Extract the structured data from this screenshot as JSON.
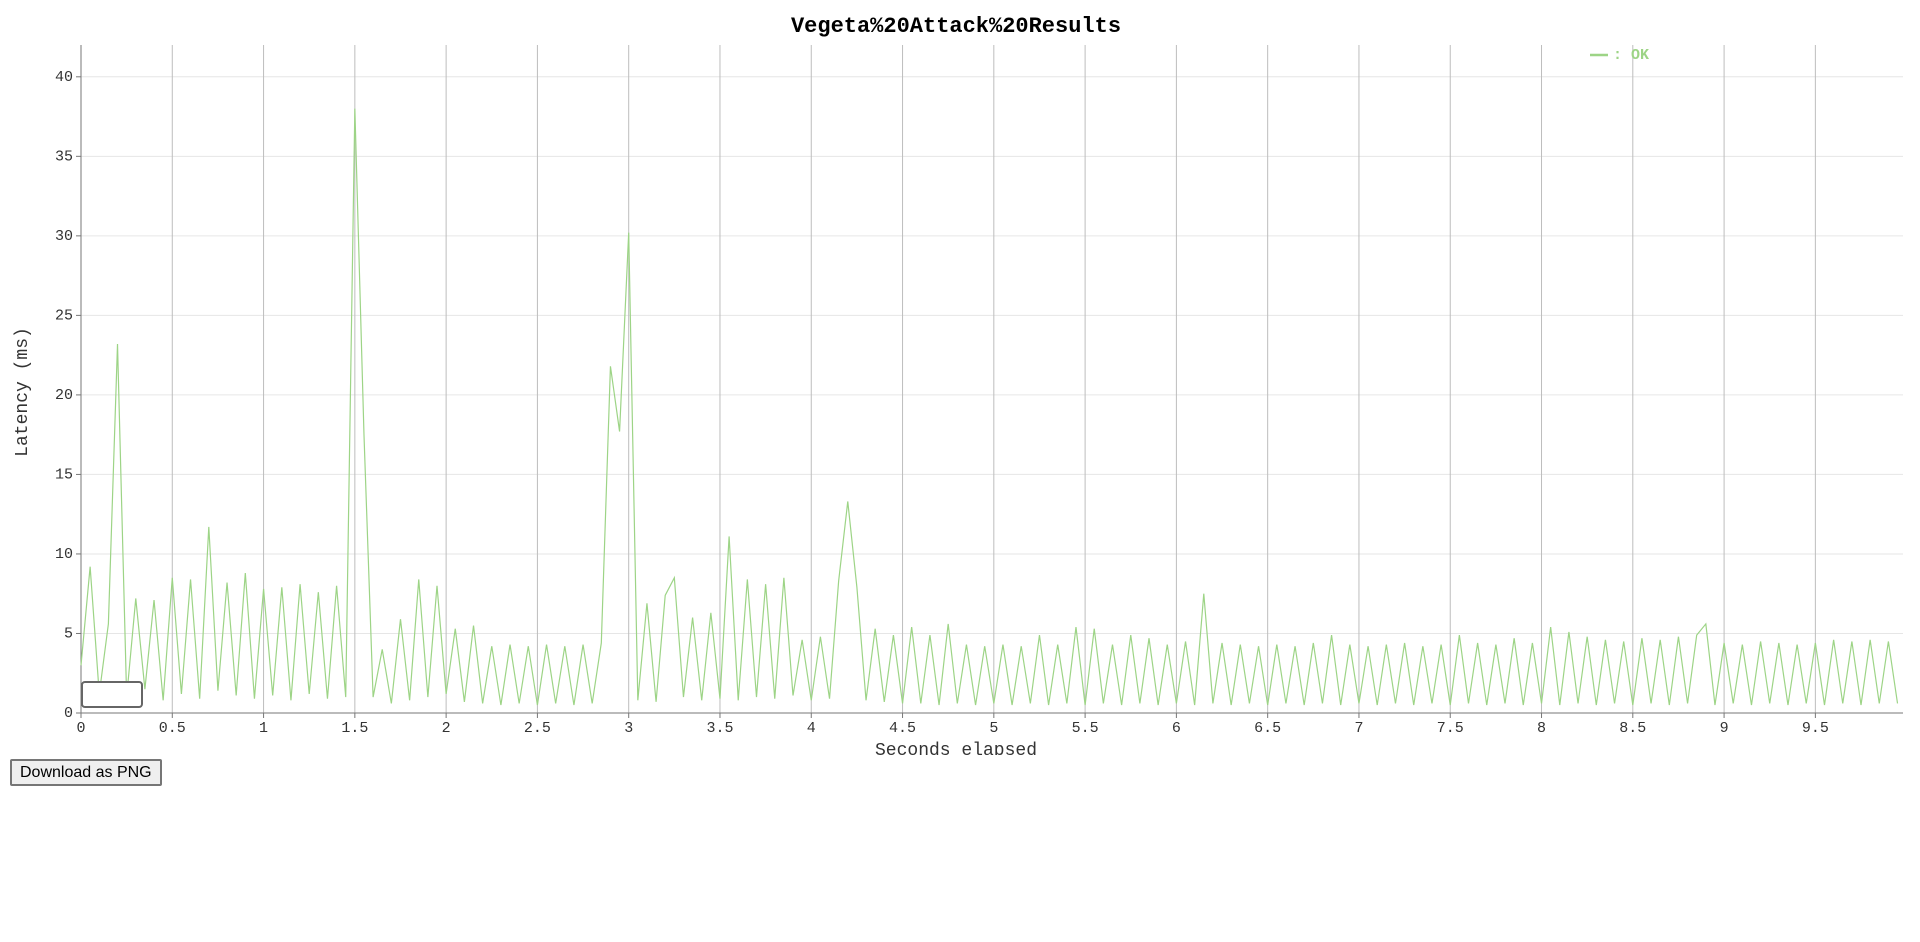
{
  "chart_data": {
    "type": "line",
    "title": "Vegeta%20Attack%20Results",
    "x_label": "Seconds elapsed",
    "y_label": "Latency (ms)",
    "xlim": [
      0,
      9.98
    ],
    "xticks": [
      0,
      0.5,
      1,
      1.5,
      2,
      2.5,
      3,
      3.5,
      4,
      4.5,
      5,
      5.5,
      6,
      6.5,
      7,
      7.5,
      8,
      8.5,
      9,
      9.5
    ],
    "ylim": [
      0,
      42
    ],
    "yticks": [
      0,
      5,
      10,
      15,
      20,
      25,
      30,
      35,
      40
    ],
    "grid": true,
    "legend": "top-right",
    "x": [
      0,
      0.05,
      0.1,
      0.15,
      0.2,
      0.25,
      0.3,
      0.35,
      0.4,
      0.45,
      0.5,
      0.55,
      0.6,
      0.65,
      0.7,
      0.75,
      0.8,
      0.85,
      0.9,
      0.95,
      1,
      1.05,
      1.1,
      1.15,
      1.2,
      1.25,
      1.3,
      1.35,
      1.4,
      1.45,
      1.5,
      1.55,
      1.6,
      1.65,
      1.7,
      1.75,
      1.8,
      1.85,
      1.9,
      1.95,
      2,
      2.05,
      2.1,
      2.15,
      2.2,
      2.25,
      2.3,
      2.35,
      2.4,
      2.45,
      2.5,
      2.55,
      2.6,
      2.65,
      2.7,
      2.75,
      2.8,
      2.85,
      2.9,
      2.95,
      3,
      3.05,
      3.1,
      3.15,
      3.2,
      3.25,
      3.3,
      3.35,
      3.4,
      3.45,
      3.5,
      3.55,
      3.6,
      3.65,
      3.7,
      3.75,
      3.8,
      3.85,
      3.9,
      3.95,
      4,
      4.05,
      4.1,
      4.15,
      4.2,
      4.25,
      4.3,
      4.35,
      4.4,
      4.45,
      4.5,
      4.55,
      4.6,
      4.65,
      4.7,
      4.75,
      4.8,
      4.85,
      4.9,
      4.95,
      5,
      5.05,
      5.1,
      5.15,
      5.2,
      5.25,
      5.3,
      5.35,
      5.4,
      5.45,
      5.5,
      5.55,
      5.6,
      5.65,
      5.7,
      5.75,
      5.8,
      5.85,
      5.9,
      5.95,
      6,
      6.05,
      6.1,
      6.15,
      6.2,
      6.25,
      6.3,
      6.35,
      6.4,
      6.45,
      6.5,
      6.55,
      6.6,
      6.65,
      6.7,
      6.75,
      6.8,
      6.85,
      6.9,
      6.95,
      7,
      7.05,
      7.1,
      7.15,
      7.2,
      7.25,
      7.3,
      7.35,
      7.4,
      7.45,
      7.5,
      7.55,
      7.6,
      7.65,
      7.7,
      7.75,
      7.8,
      7.85,
      7.9,
      7.95,
      8,
      8.05,
      8.1,
      8.15,
      8.2,
      8.25,
      8.3,
      8.35,
      8.4,
      8.45,
      8.5,
      8.55,
      8.6,
      8.65,
      8.7,
      8.75,
      8.8,
      8.85,
      8.9,
      8.95,
      9,
      9.05,
      9.1,
      9.15,
      9.2,
      9.25,
      9.3,
      9.35,
      9.4,
      9.45,
      9.5,
      9.55,
      9.6,
      9.65,
      9.7,
      9.75,
      9.8,
      9.85,
      9.9,
      9.95
    ],
    "series": [
      {
        "name": ": OK",
        "color": "#9dd486",
        "values": [
          3,
          9.2,
          1.2,
          5.6,
          23.2,
          1.0,
          7.2,
          1.5,
          7.1,
          0.8,
          8.5,
          1.2,
          8.4,
          0.9,
          11.7,
          1.4,
          8.2,
          1.1,
          8.8,
          0.9,
          7.8,
          1.1,
          7.9,
          0.8,
          8.1,
          1.2,
          7.6,
          0.9,
          8.0,
          1.0,
          38.0,
          17.5,
          1.0,
          4.0,
          0.6,
          5.9,
          0.8,
          8.4,
          1.0,
          8.0,
          1.2,
          5.3,
          0.7,
          5.5,
          0.6,
          4.2,
          0.5,
          4.3,
          0.6,
          4.2,
          0.5,
          4.3,
          0.6,
          4.2,
          0.5,
          4.3,
          0.6,
          4.4,
          21.8,
          17.7,
          30.2,
          0.8,
          6.9,
          0.7,
          7.4,
          8.5,
          1.0,
          6.0,
          0.8,
          6.3,
          0.9,
          11.1,
          0.8,
          8.4,
          1.0,
          8.1,
          0.9,
          8.5,
          1.1,
          4.6,
          0.8,
          4.8,
          0.9,
          8.3,
          13.3,
          7.9,
          0.8,
          5.3,
          0.7,
          4.9,
          0.6,
          5.4,
          0.6,
          4.9,
          0.5,
          5.6,
          0.6,
          4.3,
          0.5,
          4.2,
          0.6,
          4.3,
          0.5,
          4.2,
          0.6,
          4.9,
          0.5,
          4.3,
          0.6,
          5.4,
          0.5,
          5.3,
          0.6,
          4.3,
          0.5,
          4.9,
          0.6,
          4.7,
          0.5,
          4.3,
          0.6,
          4.5,
          0.5,
          7.5,
          0.6,
          4.4,
          0.5,
          4.3,
          0.6,
          4.2,
          0.5,
          4.3,
          0.6,
          4.2,
          0.5,
          4.4,
          0.6,
          4.9,
          0.5,
          4.3,
          0.6,
          4.2,
          0.5,
          4.3,
          0.6,
          4.4,
          0.5,
          4.2,
          0.6,
          4.3,
          0.5,
          4.9,
          0.6,
          4.4,
          0.5,
          4.3,
          0.6,
          4.7,
          0.5,
          4.4,
          0.6,
          5.4,
          0.5,
          5.1,
          0.6,
          4.8,
          0.5,
          4.6,
          0.6,
          4.5,
          0.5,
          4.7,
          0.6,
          4.6,
          0.5,
          4.8,
          0.6,
          4.9,
          5.6,
          0.5,
          4.4,
          0.6,
          4.3,
          0.5,
          4.5,
          0.6,
          4.4,
          0.5,
          4.3,
          0.6,
          4.4,
          0.5,
          4.6,
          0.6,
          4.5,
          0.5,
          4.6,
          0.6,
          4.5,
          0.6
        ]
      }
    ]
  },
  "download_button": "Download as PNG"
}
